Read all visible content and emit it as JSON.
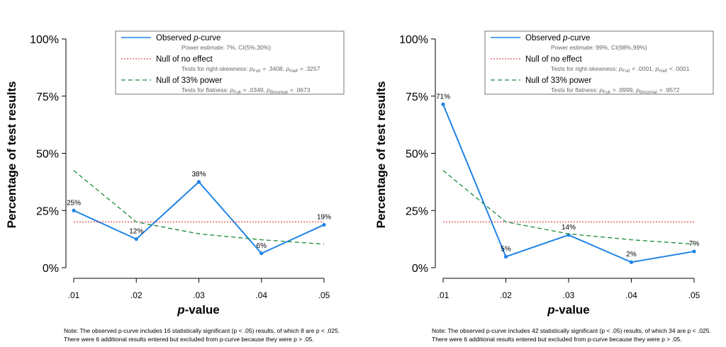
{
  "colors": {
    "observed": "#1f84e6",
    "null_effect": "#d9212b",
    "null_33": "#1a8a3a",
    "axis": "#000000"
  },
  "chart_data": [
    {
      "type": "line",
      "x_ticks": [
        ".01",
        ".02",
        ".03",
        ".04",
        ".05"
      ],
      "y_ticks": [
        "0%",
        "25%",
        "50%",
        "75%",
        "100%"
      ],
      "ylim": [
        0,
        100
      ],
      "xlabel_italic": "p",
      "xlabel_rest": "-value",
      "ylabel": "Percentage of test results",
      "series": [
        {
          "name": "Observed p-curve",
          "key": "observed",
          "values": [
            25,
            12.5,
            37.5,
            6.25,
            18.75
          ],
          "labels": [
            "25%",
            "12%",
            "38%",
            "6%",
            "19%"
          ]
        },
        {
          "name": "Null of no effect",
          "key": "null_effect",
          "values": [
            20,
            20,
            20,
            20,
            20
          ]
        },
        {
          "name": "Null of 33% power",
          "key": "null_33",
          "values": [
            42.5,
            20,
            14.8,
            12.2,
            10.3
          ]
        }
      ],
      "legend": {
        "observed_label_pre": "Observed ",
        "observed_label_italic": "p",
        "observed_label_post": "-curve",
        "observed_sub": "Power estimate: 7%, CI(5%,30%)",
        "null_label": "Null of no effect",
        "null_sub": "Tests for right-skewness: pFull = .3408,  pHalf = .3257",
        "null33_label": "Null of 33% power",
        "null33_sub": "Tests for flatness:            pFull = .0349,  pBinomial = .0673"
      },
      "note_line1": "Note: The observed p-curve includes 16 statistically significant (p < .05) results, of which 8 are p < .025.",
      "note_line2": "There were 6 additional results entered but excluded from p-curve because they were p > .05."
    },
    {
      "type": "line",
      "x_ticks": [
        ".01",
        ".02",
        ".03",
        ".04",
        ".05"
      ],
      "y_ticks": [
        "0%",
        "25%",
        "50%",
        "75%",
        "100%"
      ],
      "ylim": [
        0,
        100
      ],
      "xlabel_italic": "p",
      "xlabel_rest": "-value",
      "ylabel": "Percentage of test results",
      "series": [
        {
          "name": "Observed p-curve",
          "key": "observed",
          "values": [
            71.4,
            4.8,
            14.3,
            2.4,
            7.1
          ],
          "labels": [
            "71%",
            "5%",
            "14%",
            "2%",
            "7%"
          ]
        },
        {
          "name": "Null of no effect",
          "key": "null_effect",
          "values": [
            20,
            20,
            20,
            20,
            20
          ]
        },
        {
          "name": "Null of 33% power",
          "key": "null_33",
          "values": [
            42.5,
            20,
            14.8,
            12.2,
            10.3
          ]
        }
      ],
      "legend": {
        "observed_label_pre": "Observed ",
        "observed_label_italic": "p",
        "observed_label_post": "-curve",
        "observed_sub": "Power estimate: 99%, CI(98%,99%)",
        "null_label": "Null of no effect",
        "null_sub": "Tests for right-skewness: pFull  < .0001,  pHalf  < .0001",
        "null33_label": "Null of 33% power",
        "null33_sub": "Tests for flatness:              pFull  > .9999,  pBinomial = .9572"
      },
      "note_line1": "Note: The observed p-curve includes 42 statistically significant (p < .05) results, of which 34 are p < .025.",
      "note_line2": "There were 6 additional results entered but excluded from p-curve because they were p > .05."
    }
  ]
}
